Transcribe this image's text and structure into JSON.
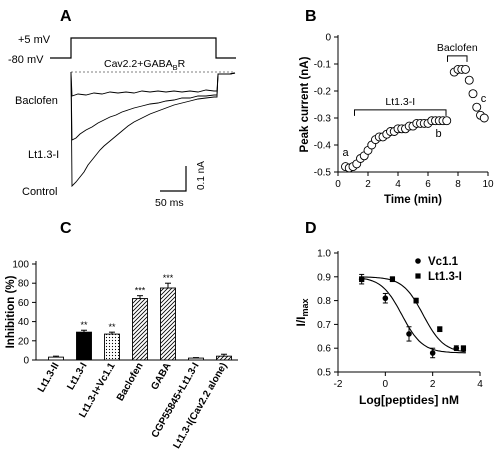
{
  "panels": {
    "A": "A",
    "B": "B",
    "C": "C",
    "D": "D"
  },
  "panel_a": {
    "protocol_high": "+5 mV",
    "protocol_low": "-80 mV",
    "condition": "Cav2.2+GABA",
    "condition_sub": "B",
    "condition_suffix": "R",
    "trace_labels": [
      "Baclofen",
      "Lt1.3-I",
      "Control"
    ],
    "scale_y": "0.1 nA",
    "scale_x": "50 ms"
  },
  "chart_data": [
    {
      "panel": "B",
      "type": "scatter",
      "xlabel": "Time (min)",
      "ylabel": "Peak current (nA)",
      "xlim": [
        0,
        10
      ],
      "ylim": [
        -0.5,
        0
      ],
      "xticks": [
        0,
        2,
        4,
        6,
        8,
        10
      ],
      "yticks": [
        0,
        -0.1,
        -0.2,
        -0.3,
        -0.4,
        -0.5
      ],
      "ytick_labels": [
        "0",
        "-0.1",
        "-0.2",
        "-0.3",
        "-0.4",
        "-0.5"
      ],
      "x": [
        0.5,
        0.75,
        1.0,
        1.25,
        1.5,
        1.75,
        2.0,
        2.25,
        2.5,
        2.75,
        3.0,
        3.25,
        3.5,
        3.75,
        4.0,
        4.25,
        4.5,
        4.75,
        5.0,
        5.25,
        5.5,
        5.75,
        6.0,
        6.25,
        6.5,
        6.75,
        7.0,
        7.25,
        7.75,
        8.0,
        8.25,
        8.5,
        8.75,
        9.0,
        9.25,
        9.5,
        9.75
      ],
      "y": [
        -0.48,
        -0.485,
        -0.48,
        -0.47,
        -0.45,
        -0.44,
        -0.42,
        -0.4,
        -0.38,
        -0.37,
        -0.37,
        -0.36,
        -0.35,
        -0.35,
        -0.34,
        -0.34,
        -0.34,
        -0.33,
        -0.33,
        -0.32,
        -0.32,
        -0.32,
        -0.32,
        -0.31,
        -0.31,
        -0.31,
        -0.31,
        -0.31,
        -0.13,
        -0.12,
        -0.12,
        -0.12,
        -0.16,
        -0.21,
        -0.26,
        -0.29,
        -0.3
      ],
      "point_labels": [
        {
          "text": "a",
          "x": 0.5,
          "y": -0.44
        },
        {
          "text": "b",
          "x": 6.7,
          "y": -0.37
        },
        {
          "text": "c",
          "x": 9.7,
          "y": -0.24
        }
      ],
      "annotations": [
        {
          "text": "Lt1.3-I",
          "x_start": 1.1,
          "x_end": 7.2,
          "y": -0.27
        },
        {
          "text": "Baclofen",
          "x_start": 7.3,
          "x_end": 8.6,
          "y": -0.07
        }
      ]
    },
    {
      "panel": "C",
      "type": "bar",
      "ylabel": "Inhibition (%)",
      "ylim": [
        0,
        100
      ],
      "yticks": [
        0,
        20,
        40,
        60,
        80,
        100
      ],
      "categories": [
        "Lt1.3-II",
        "Lt1.3-I",
        "Lt1.3-I+Vc1.1",
        "Baclofen",
        "GABA",
        "CGP55845+Lt1.3-I",
        "Lt1.3-I(Cav2.2 alone)"
      ],
      "values": [
        3,
        29,
        27,
        64,
        75,
        2,
        4
      ],
      "errors": [
        1,
        2,
        2,
        3,
        5,
        0.5,
        2
      ],
      "significance": [
        "",
        "**",
        "**",
        "***",
        "***",
        "",
        ""
      ],
      "fills": [
        "white",
        "black",
        "dots",
        "hatch",
        "hatch",
        "white",
        "hatch"
      ]
    },
    {
      "panel": "D",
      "type": "line",
      "xlabel": "Log[peptides] nM",
      "ylabel": "I/I",
      "ylabel_sub": "max",
      "xlim": [
        -2,
        4
      ],
      "ylim": [
        0.5,
        1.0
      ],
      "xticks": [
        -2,
        0,
        2,
        4
      ],
      "yticks": [
        0.5,
        0.6,
        0.7,
        0.8,
        0.9,
        1.0
      ],
      "ytick_labels": [
        "0.5",
        "0.6",
        "0.7",
        "0.8",
        "0.9",
        "1.0"
      ],
      "legend_position": "top-right",
      "series": [
        {
          "name": "Vc1.1",
          "marker": "circle",
          "x": [
            -1,
            0,
            1,
            2,
            3
          ],
          "y": [
            0.89,
            0.81,
            0.66,
            0.58,
            0.6
          ],
          "errors": [
            0.02,
            0.02,
            0.03,
            0.02,
            0.01
          ],
          "fit": {
            "top": 0.9,
            "bottom": 0.58,
            "logEC50": 0.7,
            "hill": 1.0
          }
        },
        {
          "name": "Lt1.3-I",
          "marker": "square",
          "x": [
            -1,
            0.3,
            1.3,
            2.3,
            3.3
          ],
          "y": [
            0.89,
            0.89,
            0.8,
            0.68,
            0.6
          ],
          "errors": [
            0.01,
            0.01,
            0.01,
            0.01,
            0.01
          ],
          "fit": {
            "top": 0.9,
            "bottom": 0.58,
            "logEC50": 1.6,
            "hill": 1.0
          }
        }
      ]
    }
  ]
}
